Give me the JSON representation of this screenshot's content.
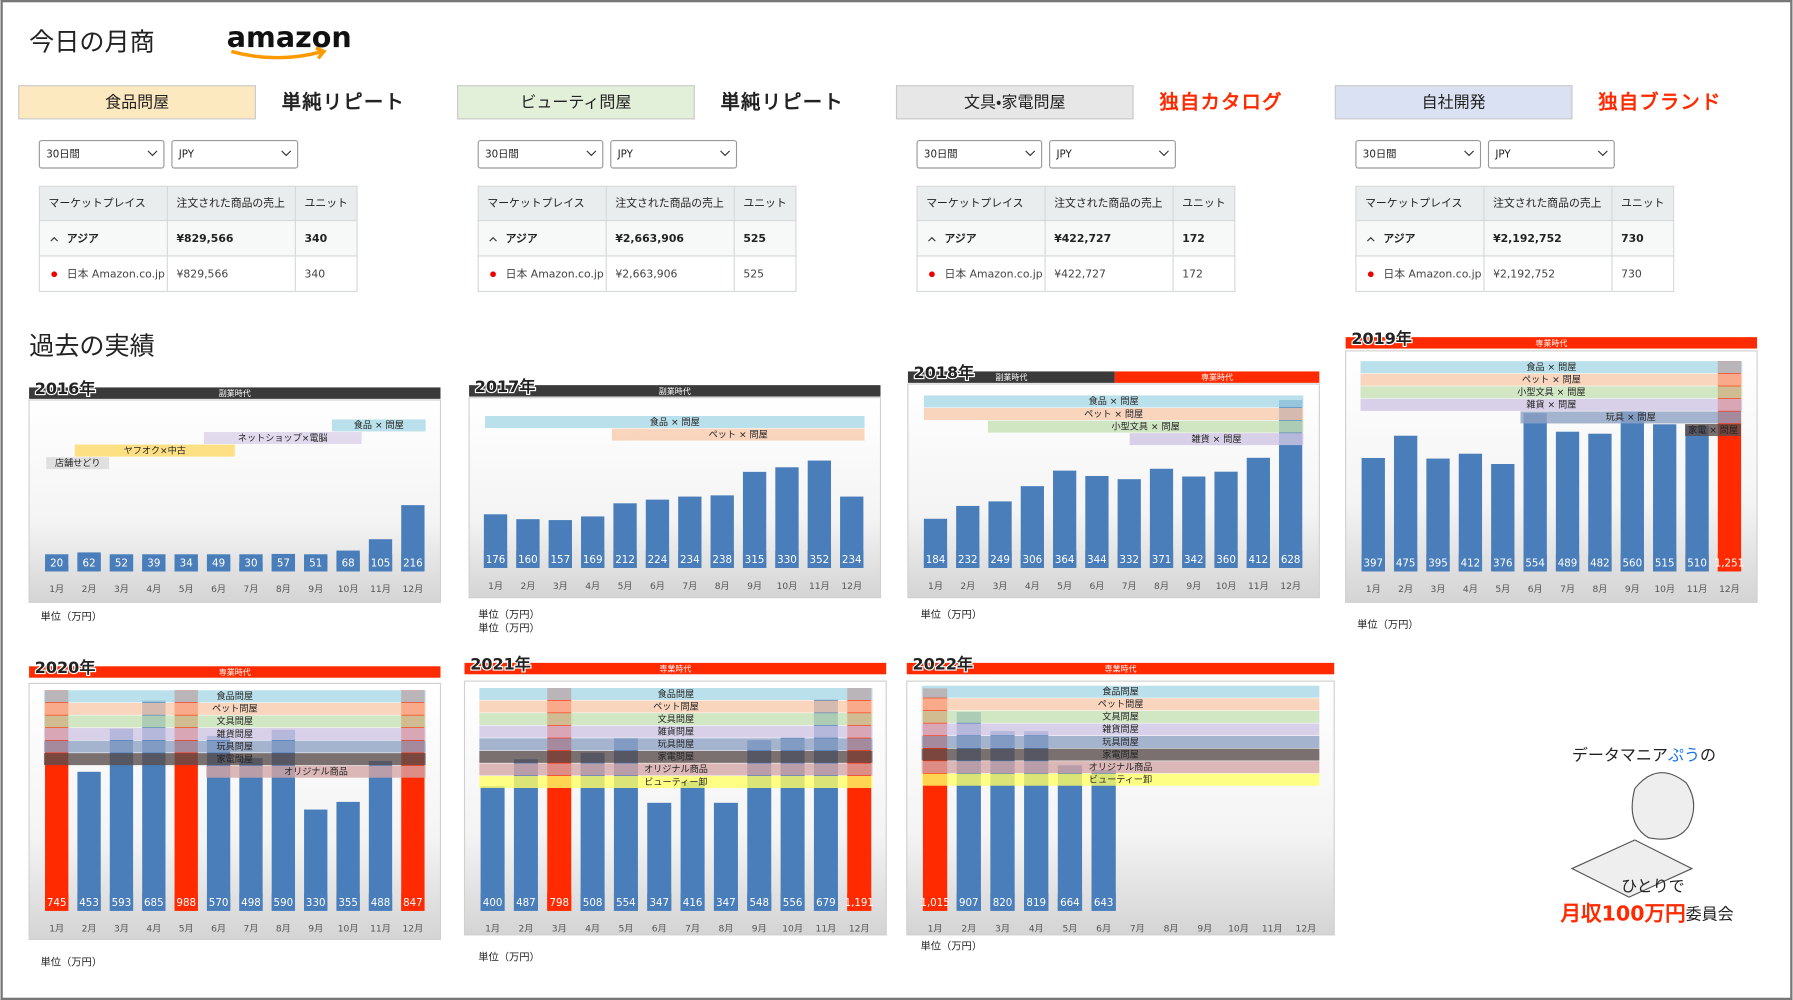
{
  "header": {
    "title": "今日の月商",
    "logo": "amazon"
  },
  "stores": [
    {
      "category": "食品問屋",
      "color": "#fde9c0",
      "tag": "単純リピート",
      "tag_color": "#222222",
      "period": "30日間",
      "currency": "JPY",
      "table": {
        "headers": [
          "マーケットプレイス",
          "注文された商品の売上",
          "ユニット"
        ],
        "rows": [
          [
            "アジア",
            "¥829,566",
            "340"
          ],
          [
            "日本 Amazon.co.jp",
            "¥829,566",
            "340"
          ]
        ]
      }
    },
    {
      "category": "ビューティ問屋",
      "color": "#e2efd9",
      "tag": "単純リピート",
      "tag_color": "#222222",
      "period": "30日間",
      "currency": "JPY",
      "table": {
        "headers": [
          "マーケットプレイス",
          "注文された商品の売上",
          "ユニット"
        ],
        "rows": [
          [
            "アジア",
            "¥2,663,906",
            "525"
          ],
          [
            "日本 Amazon.co.jp",
            "¥2,663,906",
            "525"
          ]
        ]
      }
    },
    {
      "category": "文具・家電問屋",
      "color": "#e7e7e7",
      "tag": "独自カタログ",
      "tag_color": "#ff2a00",
      "period": "30日間",
      "currency": "JPY",
      "table": {
        "headers": [
          "マーケットプレイス",
          "注文された商品の売上",
          "ユニット"
        ],
        "rows": [
          [
            "アジア",
            "¥422,727",
            "172"
          ],
          [
            "日本 Amazon.co.jp",
            "¥422,727",
            "172"
          ]
        ]
      }
    },
    {
      "category": "自社開発",
      "color": "#d9e1f2",
      "tag": "独自ブランド",
      "tag_color": "#ff2a00",
      "period": "30日間",
      "currency": "JPY",
      "table": {
        "headers": [
          "マーケットプレイス",
          "注文された商品の売上",
          "ユニット"
        ],
        "rows": [
          [
            "アジア",
            "¥2,192,752",
            "730"
          ],
          [
            "日本 Amazon.co.jp",
            "¥2,192,752",
            "730"
          ]
        ]
      }
    }
  ],
  "history": {
    "title": "過去の実績",
    "months": [
      "1月",
      "2月",
      "3月",
      "4月",
      "5月",
      "6月",
      "7月",
      "8月",
      "9月",
      "10月",
      "11月",
      "12月"
    ],
    "charts": [
      {
        "type": "bar",
        "year": "2016年",
        "unit": "単位（万円）",
        "eras": [
          {
            "label": "副業時代",
            "color": "#3a3a3a"
          }
        ],
        "bands": [
          {
            "label": "食品 × 問屋",
            "color": "#a9d8e6"
          },
          {
            "label": "ネットショップ×電脳",
            "color": "#d9d2e9"
          },
          {
            "label": "ヤフオク×中古",
            "color": "#ffd966"
          },
          {
            "label": "店舗せどり",
            "color": "#d9d9d9"
          }
        ],
        "values": [
          20,
          62,
          52,
          39,
          34,
          49,
          30,
          57,
          51,
          68,
          105,
          216
        ],
        "colors": [
          "#4a7ebb",
          "#4a7ebb",
          "#4a7ebb",
          "#4a7ebb",
          "#4a7ebb",
          "#4a7ebb",
          "#4a7ebb",
          "#4a7ebb",
          "#4a7ebb",
          "#4a7ebb",
          "#4a7ebb",
          "#4a7ebb"
        ]
      },
      {
        "type": "bar",
        "year": "2017年",
        "unit": "単位（万円）",
        "eras": [
          {
            "label": "副業時代",
            "color": "#3a3a3a"
          }
        ],
        "bands": [
          {
            "label": "食品 × 問屋",
            "color": "#a9d8e6"
          },
          {
            "label": "ペット × 問屋",
            "color": "#f8cbad"
          }
        ],
        "values": [
          176,
          160,
          157,
          169,
          212,
          224,
          234,
          238,
          315,
          330,
          352,
          234
        ],
        "colors": [
          "#4a7ebb",
          "#4a7ebb",
          "#4a7ebb",
          "#4a7ebb",
          "#4a7ebb",
          "#4a7ebb",
          "#4a7ebb",
          "#4a7ebb",
          "#4a7ebb",
          "#4a7ebb",
          "#4a7ebb",
          "#4a7ebb"
        ]
      },
      {
        "type": "bar",
        "year": "2018年",
        "unit": "単位（万円）",
        "eras": [
          {
            "label": "副業時代",
            "color": "#3a3a3a"
          },
          {
            "label": "専業時代",
            "color": "#ff2a00"
          }
        ],
        "bands": [
          {
            "label": "食品 × 問屋",
            "color": "#a9d8e6"
          },
          {
            "label": "ペット × 問屋",
            "color": "#f8cbad"
          },
          {
            "label": "小型文具 × 問屋",
            "color": "#c6e0b4"
          },
          {
            "label": "雑貨 × 問屋",
            "color": "#cfc5e3"
          }
        ],
        "values": [
          184,
          232,
          249,
          306,
          364,
          344,
          332,
          371,
          342,
          360,
          412,
          628
        ],
        "colors": [
          "#4a7ebb",
          "#4a7ebb",
          "#4a7ebb",
          "#4a7ebb",
          "#4a7ebb",
          "#4a7ebb",
          "#4a7ebb",
          "#4a7ebb",
          "#4a7ebb",
          "#4a7ebb",
          "#4a7ebb",
          "#4a7ebb"
        ]
      },
      {
        "type": "bar",
        "year": "2019年",
        "unit": "単位（万円）",
        "eras": [
          {
            "label": "専業時代",
            "color": "#ff2a00"
          }
        ],
        "bands": [
          {
            "label": "食品 × 問屋",
            "color": "#a9d8e6"
          },
          {
            "label": "ペット × 問屋",
            "color": "#f8cbad"
          },
          {
            "label": "小型文具 × 問屋",
            "color": "#c6e0b4"
          },
          {
            "label": "雑貨 × 問屋",
            "color": "#cfc5e3"
          },
          {
            "label": "玩具 × 問屋",
            "color": "#8ea3c4"
          },
          {
            "label": "家電 × 問屋",
            "color": "#5a4d4d"
          }
        ],
        "values": [
          397,
          475,
          395,
          412,
          376,
          554,
          489,
          482,
          560,
          515,
          510,
          1251
        ],
        "value_labels": [
          "397",
          "475",
          "395",
          "412",
          "376",
          "554",
          "489",
          "482",
          "560",
          "515",
          "510",
          "1,251"
        ],
        "colors": [
          "#4a7ebb",
          "#4a7ebb",
          "#4a7ebb",
          "#4a7ebb",
          "#4a7ebb",
          "#4a7ebb",
          "#4a7ebb",
          "#4a7ebb",
          "#4a7ebb",
          "#4a7ebb",
          "#4a7ebb",
          "#ff2a00"
        ]
      },
      {
        "type": "bar",
        "year": "2020年",
        "unit": "単位（万円）",
        "eras": [
          {
            "label": "専業時代",
            "color": "#ff2a00"
          }
        ],
        "bands": [
          {
            "label": "食品問屋",
            "color": "#a9d8e6"
          },
          {
            "label": "ペット問屋",
            "color": "#f8cbad"
          },
          {
            "label": "文具問屋",
            "color": "#c6e0b4"
          },
          {
            "label": "雑貨問屋",
            "color": "#cfc5e3"
          },
          {
            "label": "玩具問屋",
            "color": "#8ea3c4"
          },
          {
            "label": "家電問屋",
            "color": "#5a4d4d"
          },
          {
            "label": "オリジナル商品",
            "color": "#d5a6a6"
          }
        ],
        "values": [
          745,
          453,
          593,
          685,
          988,
          570,
          498,
          590,
          330,
          355,
          488,
          847
        ],
        "colors": [
          "#ff2a00",
          "#4a7ebb",
          "#4a7ebb",
          "#4a7ebb",
          "#ff2a00",
          "#4a7ebb",
          "#4a7ebb",
          "#4a7ebb",
          "#4a7ebb",
          "#4a7ebb",
          "#4a7ebb",
          "#ff2a00"
        ]
      },
      {
        "type": "bar",
        "year": "2021年",
        "unit": "単位（万円）",
        "eras": [
          {
            "label": "専業時代",
            "color": "#ff2a00"
          }
        ],
        "bands": [
          {
            "label": "食品問屋",
            "color": "#a9d8e6"
          },
          {
            "label": "ペット問屋",
            "color": "#f8cbad"
          },
          {
            "label": "文具問屋",
            "color": "#c6e0b4"
          },
          {
            "label": "雑貨問屋",
            "color": "#cfc5e3"
          },
          {
            "label": "玩具問屋",
            "color": "#8ea3c4"
          },
          {
            "label": "家電問屋",
            "color": "#5a4d4d"
          },
          {
            "label": "オリジナル商品",
            "color": "#d5a6a6"
          },
          {
            "label": "ビューティー卸",
            "color": "#ffff66"
          }
        ],
        "values": [
          400,
          487,
          798,
          508,
          554,
          347,
          416,
          347,
          548,
          556,
          679,
          1191
        ],
        "value_labels": [
          "400",
          "487",
          "798",
          "508",
          "554",
          "347",
          "416",
          "347",
          "548",
          "556",
          "679",
          "1,191"
        ],
        "colors": [
          "#4a7ebb",
          "#4a7ebb",
          "#ff2a00",
          "#4a7ebb",
          "#4a7ebb",
          "#4a7ebb",
          "#4a7ebb",
          "#4a7ebb",
          "#4a7ebb",
          "#4a7ebb",
          "#4a7ebb",
          "#ff2a00"
        ]
      },
      {
        "type": "bar",
        "year": "2022年",
        "unit": "単位（万円）",
        "eras": [
          {
            "label": "専業時代",
            "color": "#ff2a00"
          }
        ],
        "bands": [
          {
            "label": "食品問屋",
            "color": "#a9d8e6"
          },
          {
            "label": "ペット問屋",
            "color": "#f8cbad"
          },
          {
            "label": "文具問屋",
            "color": "#c6e0b4"
          },
          {
            "label": "雑貨問屋",
            "color": "#cfc5e3"
          },
          {
            "label": "玩具問屋",
            "color": "#8ea3c4"
          },
          {
            "label": "家電問屋",
            "color": "#5a4d4d"
          },
          {
            "label": "オリジナル商品",
            "color": "#d5a6a6"
          },
          {
            "label": "ビューティー卸",
            "color": "#ffff66"
          }
        ],
        "values": [
          1015,
          907,
          820,
          819,
          664,
          643,
          null,
          null,
          null,
          null,
          null,
          null
        ],
        "value_labels": [
          "1,015",
          "907",
          "820",
          "819",
          "664",
          "643",
          null,
          null,
          null,
          null,
          null,
          null
        ],
        "colors": [
          "#ff2a00",
          "#4a7ebb",
          "#4a7ebb",
          "#4a7ebb",
          "#4a7ebb",
          "#4a7ebb",
          "#4a7ebb",
          "#4a7ebb",
          "#4a7ebb",
          "#4a7ebb",
          "#4a7ebb",
          "#4a7ebb"
        ]
      }
    ]
  },
  "brand": {
    "line1_a": "データマニア",
    "line1_b": "ぷう",
    "line1_c": "の",
    "line2": "ひとりで",
    "line3_a": "月収100万円",
    "line3_b": "委員会"
  }
}
